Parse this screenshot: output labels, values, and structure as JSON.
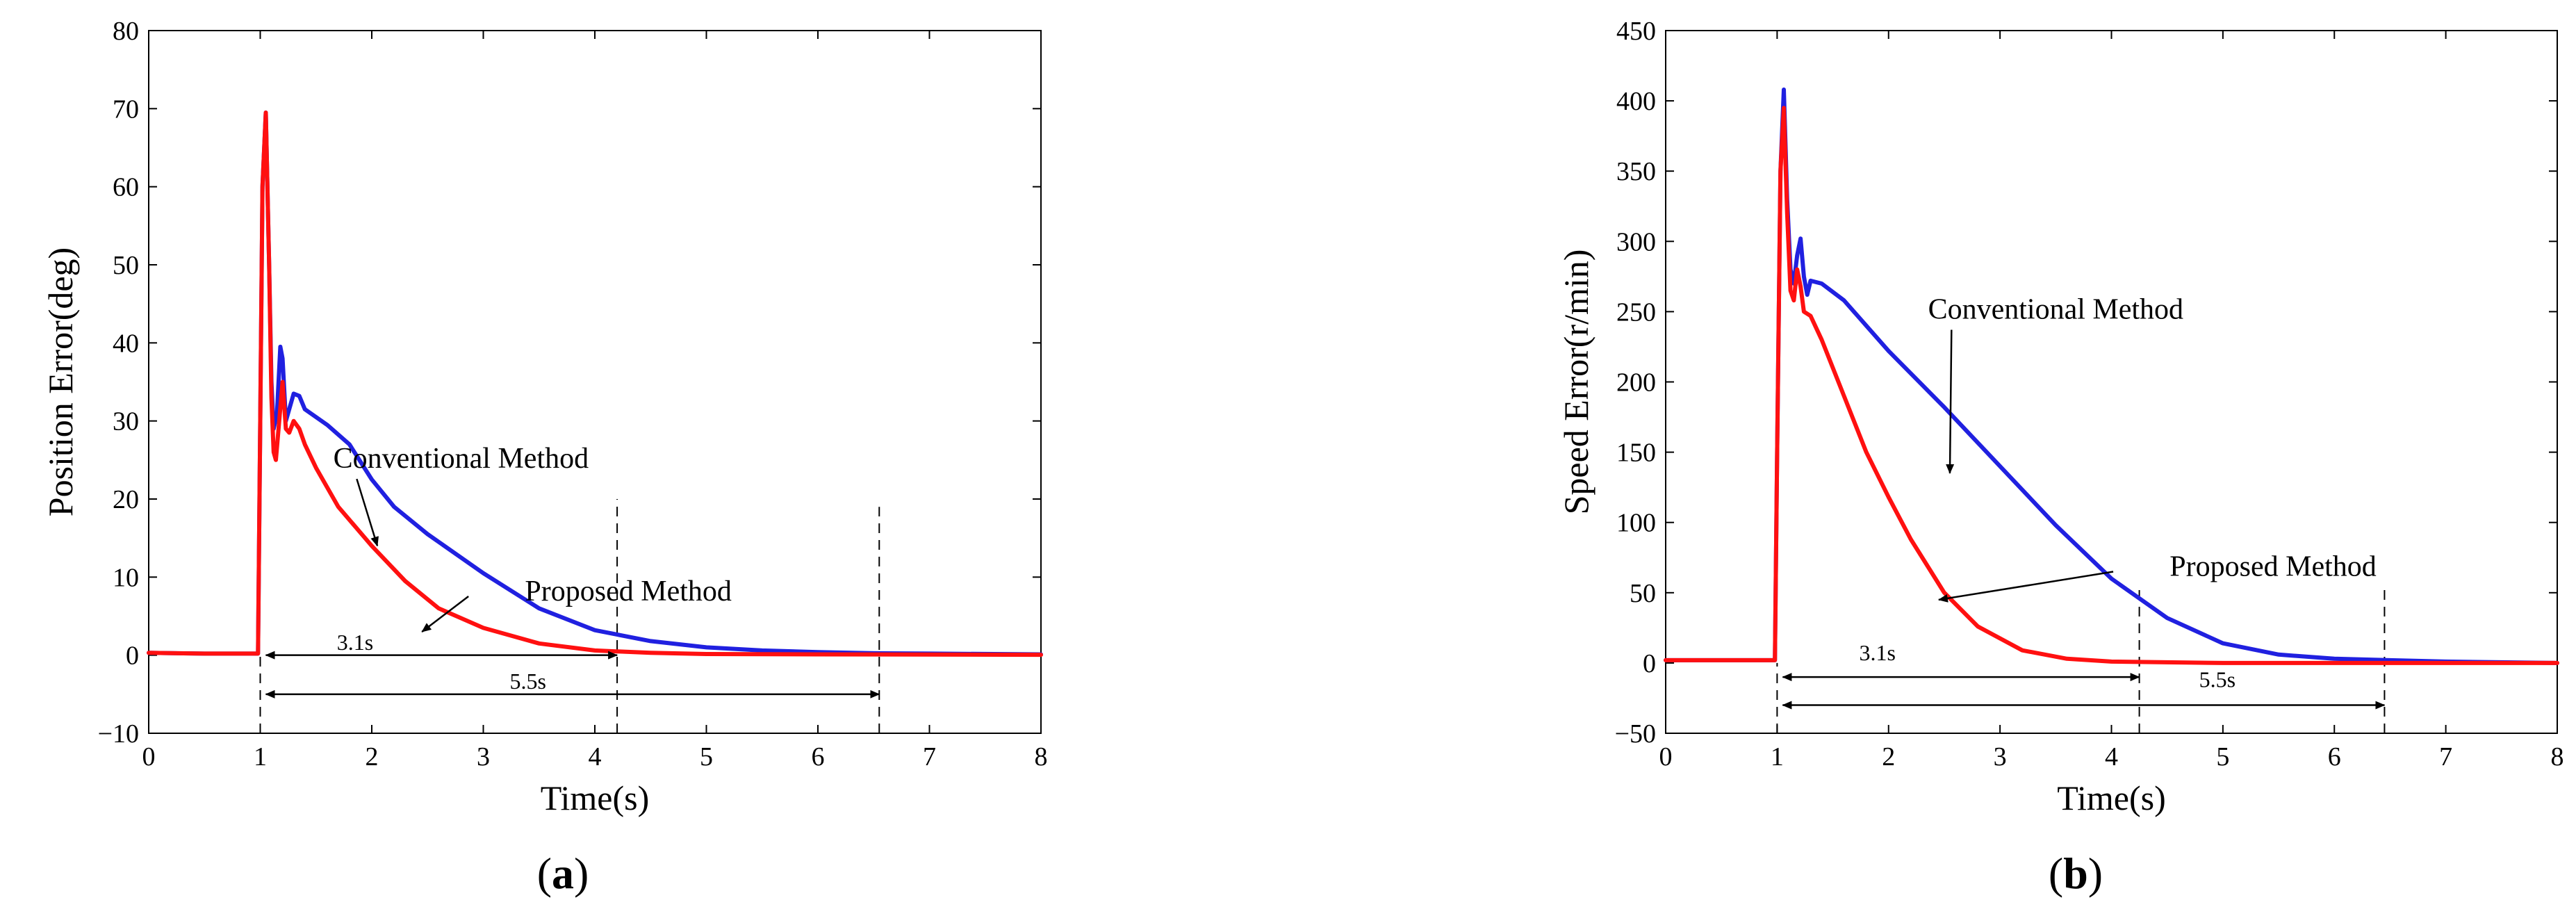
{
  "chart_data": [
    {
      "type": "line",
      "panel_label": "a",
      "xlabel": "Time(s)",
      "ylabel": "Position Error(deg)",
      "xlim": [
        0,
        8
      ],
      "ylim": [
        -10,
        80
      ],
      "x_ticks": [
        0,
        1,
        2,
        3,
        4,
        5,
        6,
        7,
        8
      ],
      "y_ticks": [
        -10,
        0,
        10,
        20,
        30,
        40,
        50,
        60,
        70,
        80
      ],
      "grid": false,
      "series": [
        {
          "color": "#2020e0",
          "points": [
            [
              0,
              0.3
            ],
            [
              0.5,
              0.2
            ],
            [
              0.98,
              0.2
            ],
            [
              1.0,
              30
            ],
            [
              1.02,
              60
            ],
            [
              1.05,
              69.5
            ],
            [
              1.08,
              50
            ],
            [
              1.1,
              35
            ],
            [
              1.12,
              29
            ],
            [
              1.15,
              31
            ],
            [
              1.18,
              39.5
            ],
            [
              1.2,
              38
            ],
            [
              1.23,
              30
            ],
            [
              1.25,
              31
            ],
            [
              1.3,
              33.5
            ],
            [
              1.35,
              33.2
            ],
            [
              1.4,
              31.5
            ],
            [
              1.6,
              29.5
            ],
            [
              1.8,
              27
            ],
            [
              2.0,
              22.5
            ],
            [
              2.2,
              19
            ],
            [
              2.5,
              15.5
            ],
            [
              3.0,
              10.5
            ],
            [
              3.5,
              6
            ],
            [
              4.0,
              3.2
            ],
            [
              4.5,
              1.8
            ],
            [
              5.0,
              1.0
            ],
            [
              5.5,
              0.6
            ],
            [
              6.0,
              0.4
            ],
            [
              6.5,
              0.25
            ],
            [
              7.0,
              0.2
            ],
            [
              8.0,
              0.1
            ]
          ]
        },
        {
          "color": "#ff1010",
          "points": [
            [
              0,
              0.3
            ],
            [
              0.5,
              0.2
            ],
            [
              0.98,
              0.2
            ],
            [
              1.0,
              30
            ],
            [
              1.02,
              60
            ],
            [
              1.05,
              69.5
            ],
            [
              1.08,
              50
            ],
            [
              1.1,
              33
            ],
            [
              1.12,
              26
            ],
            [
              1.14,
              25
            ],
            [
              1.17,
              30
            ],
            [
              1.2,
              35
            ],
            [
              1.23,
              29
            ],
            [
              1.26,
              28.5
            ],
            [
              1.3,
              30
            ],
            [
              1.35,
              29
            ],
            [
              1.4,
              27
            ],
            [
              1.5,
              24
            ],
            [
              1.7,
              19
            ],
            [
              2.0,
              14
            ],
            [
              2.3,
              9.5
            ],
            [
              2.6,
              6
            ],
            [
              3.0,
              3.5
            ],
            [
              3.5,
              1.5
            ],
            [
              4.0,
              0.6
            ],
            [
              4.5,
              0.3
            ],
            [
              5.0,
              0.15
            ],
            [
              6.0,
              0.1
            ],
            [
              8.0,
              0.05
            ]
          ]
        }
      ],
      "annotations": [
        {
          "text": "Conventional Method",
          "text_pos": [
            2.8,
            24
          ],
          "target": [
            2.05,
            14
          ]
        },
        {
          "text": "Proposed Method",
          "text_pos": [
            4.3,
            7
          ],
          "target": [
            2.45,
            3
          ]
        }
      ],
      "intervals": [
        {
          "label": "3.1s",
          "x0": 1.05,
          "x1": 4.2,
          "y": 0.0,
          "label_pos": [
            1.85,
            0.7
          ]
        },
        {
          "label": "5.5s",
          "x0": 1.05,
          "x1": 6.55,
          "y": -5.0,
          "label_pos": [
            3.4,
            -4.3
          ]
        }
      ],
      "dashed_lines": [
        {
          "x": 1.0,
          "y0": -10,
          "y1": 0
        },
        {
          "x": 4.2,
          "y0": -10,
          "y1": 20
        },
        {
          "x": 6.55,
          "y0": -10,
          "y1": 19
        }
      ]
    },
    {
      "type": "line",
      "panel_label": "b",
      "xlabel": "Time(s)",
      "ylabel": "Speed Error(r/min)",
      "xlim": [
        0,
        8
      ],
      "ylim": [
        -50,
        450
      ],
      "x_ticks": [
        0,
        1,
        2,
        3,
        4,
        5,
        6,
        7,
        8
      ],
      "y_ticks": [
        -50,
        0,
        50,
        100,
        150,
        200,
        250,
        300,
        350,
        400,
        450
      ],
      "grid": false,
      "series": [
        {
          "color": "#2020e0",
          "points": [
            [
              0,
              2
            ],
            [
              0.5,
              2
            ],
            [
              0.98,
              2
            ],
            [
              1.0,
              150
            ],
            [
              1.03,
              350
            ],
            [
              1.06,
              408
            ],
            [
              1.09,
              330
            ],
            [
              1.12,
              280
            ],
            [
              1.15,
              270
            ],
            [
              1.18,
              290
            ],
            [
              1.21,
              302
            ],
            [
              1.24,
              275
            ],
            [
              1.27,
              262
            ],
            [
              1.3,
              272
            ],
            [
              1.4,
              270
            ],
            [
              1.6,
              258
            ],
            [
              1.8,
              240
            ],
            [
              2.0,
              222
            ],
            [
              2.5,
              182
            ],
            [
              3.0,
              140
            ],
            [
              3.5,
              98
            ],
            [
              4.0,
              60
            ],
            [
              4.5,
              32
            ],
            [
              5.0,
              14
            ],
            [
              5.5,
              6
            ],
            [
              6.0,
              3
            ],
            [
              7.0,
              1
            ],
            [
              8.0,
              0
            ]
          ]
        },
        {
          "color": "#ff1010",
          "points": [
            [
              0,
              2
            ],
            [
              0.5,
              2
            ],
            [
              0.98,
              2
            ],
            [
              1.0,
              150
            ],
            [
              1.03,
              350
            ],
            [
              1.06,
              395
            ],
            [
              1.09,
              320
            ],
            [
              1.12,
              265
            ],
            [
              1.15,
              258
            ],
            [
              1.18,
              280
            ],
            [
              1.21,
              268
            ],
            [
              1.24,
              250
            ],
            [
              1.3,
              247
            ],
            [
              1.4,
              230
            ],
            [
              1.6,
              190
            ],
            [
              1.8,
              150
            ],
            [
              2.0,
              118
            ],
            [
              2.2,
              88
            ],
            [
              2.5,
              50
            ],
            [
              2.8,
              26
            ],
            [
              3.2,
              9
            ],
            [
              3.6,
              3
            ],
            [
              4.0,
              1
            ],
            [
              5.0,
              0
            ],
            [
              8.0,
              0
            ]
          ]
        }
      ],
      "annotations": [
        {
          "text": "Conventional Method",
          "text_pos": [
            3.5,
            245
          ],
          "target": [
            2.55,
            135
          ]
        },
        {
          "text": "Proposed Method",
          "text_pos": [
            5.45,
            62
          ],
          "target": [
            2.45,
            45
          ]
        }
      ],
      "intervals": [
        {
          "label": "3.1s",
          "x0": 1.05,
          "x1": 4.25,
          "y": -10,
          "label_pos": [
            1.9,
            2
          ]
        },
        {
          "label": "5.5s",
          "x0": 1.05,
          "x1": 6.45,
          "y": -30,
          "label_pos": [
            4.95,
            -17
          ]
        }
      ],
      "dashed_lines": [
        {
          "x": 1.0,
          "y0": -50,
          "y1": 0
        },
        {
          "x": 4.25,
          "y0": -50,
          "y1": 52
        },
        {
          "x": 6.45,
          "y0": -50,
          "y1": 52
        }
      ]
    }
  ]
}
